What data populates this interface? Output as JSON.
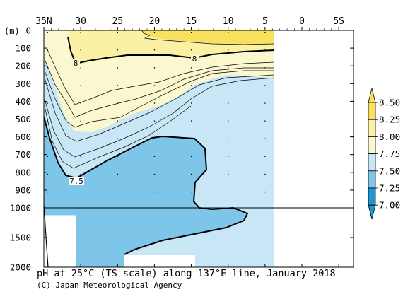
{
  "chart_data": {
    "type": "heatmap",
    "title": "pH at 25°C (TS scale) along 137°E line, January 2018",
    "credit": "(C) Japan Meteorological Agency",
    "x_axis": {
      "label": "",
      "tick_labels": [
        "35N",
        "30",
        "25",
        "20",
        "15",
        "10",
        "5",
        "0",
        "5S"
      ],
      "tick_values": [
        35,
        30,
        25,
        20,
        15,
        10,
        5,
        0,
        -5
      ],
      "range": [
        35,
        -7
      ]
    },
    "y_axis": {
      "unit_label": "(m)",
      "upper_panel": {
        "range": [
          0,
          1000
        ],
        "tick_values": [
          0,
          100,
          200,
          300,
          400,
          500,
          600,
          700,
          800,
          900,
          1000
        ]
      },
      "lower_panel": {
        "range": [
          1000,
          2000
        ],
        "tick_values": [
          1500,
          2000
        ]
      },
      "tick_labels": [
        "0",
        "100",
        "200",
        "300",
        "400",
        "500",
        "600",
        "700",
        "800",
        "900",
        "1000",
        "1500",
        "2000"
      ]
    },
    "colorbar": {
      "levels": [
        7.0,
        7.25,
        7.5,
        7.75,
        8.0,
        8.25,
        8.5
      ],
      "labels": [
        "7.00",
        "7.25",
        "7.50",
        "7.75",
        "8.00",
        "8.25",
        "8.50"
      ],
      "colors": [
        "#1a98cf",
        "#7dc6ea",
        "#c8e6f6",
        "#fbf8cf",
        "#fbf0a3",
        "#f8e15e"
      ],
      "extend_below_color": "#1a98cf",
      "extend_above_color": "#f8e15e"
    },
    "contour_labels": [
      "8",
      "8",
      "7.5"
    ],
    "stations": [
      {
        "lat": 34.5,
        "depths": [
          0,
          100,
          200,
          300,
          400,
          500,
          600,
          700,
          800,
          900
        ]
      },
      {
        "lat": 30.0,
        "depths": [
          0,
          100,
          200,
          300,
          400,
          500,
          600,
          700,
          800,
          900
        ]
      },
      {
        "lat": 25.0,
        "depths": [
          0,
          100,
          200,
          300,
          400,
          500,
          600,
          700,
          800,
          900
        ]
      },
      {
        "lat": 20.0,
        "depths": [
          0,
          100,
          200,
          300,
          400,
          500,
          600,
          700,
          800,
          900
        ]
      },
      {
        "lat": 15.0,
        "depths": [
          0,
          100,
          200,
          300,
          400,
          500,
          600,
          700,
          800,
          900
        ]
      },
      {
        "lat": 10.0,
        "depths": [
          0,
          100,
          200,
          300,
          400,
          500,
          600,
          700,
          800,
          900
        ]
      },
      {
        "lat": 5.0,
        "depths": [
          0,
          100,
          200,
          300,
          400,
          500,
          600,
          700,
          800,
          900
        ]
      }
    ]
  }
}
